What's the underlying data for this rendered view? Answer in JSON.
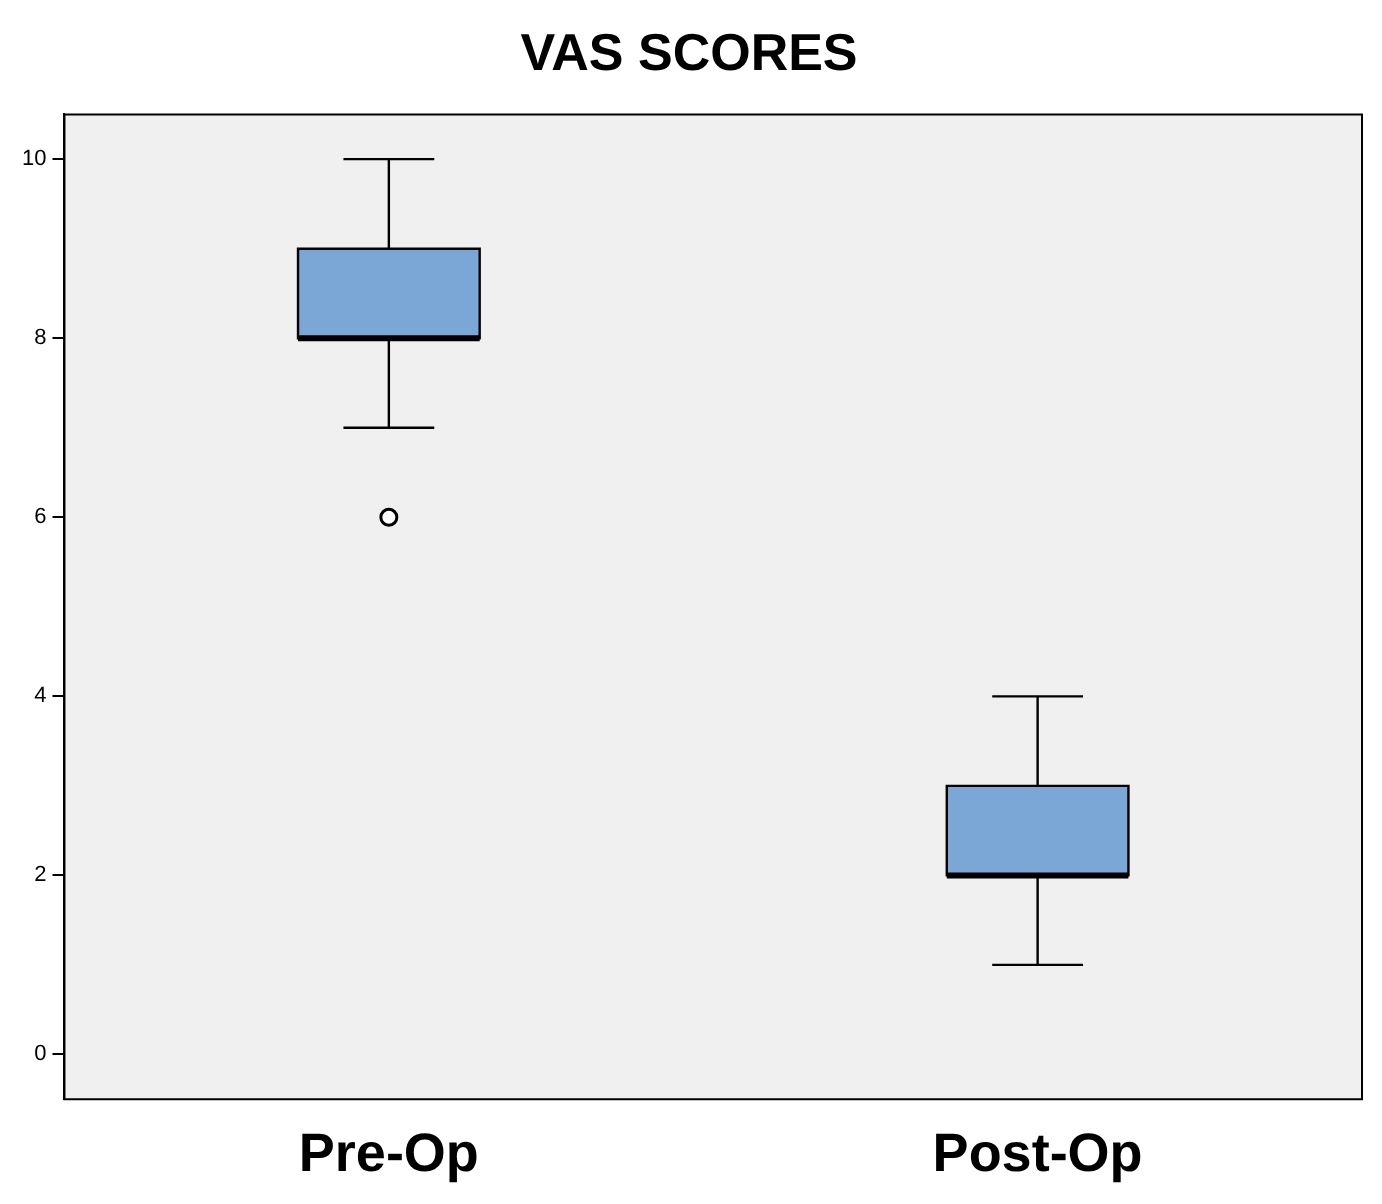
{
  "chart_data": {
    "type": "box",
    "title": "VAS SCORES",
    "categories": [
      "Pre-Op",
      "Post-Op"
    ],
    "boxes": [
      {
        "low": 7,
        "q1": 8,
        "median": 8,
        "q3": 9,
        "high": 10,
        "outliers": [
          6
        ]
      },
      {
        "low": 1,
        "q1": 2,
        "median": 2,
        "q3": 3,
        "high": 4
      }
    ],
    "color": "#7ba7d6",
    "ylim": [
      -0.5,
      10.5
    ],
    "yticks": [
      0,
      2,
      4,
      6,
      8,
      10
    ],
    "grid": false,
    "marker": "circle"
  }
}
